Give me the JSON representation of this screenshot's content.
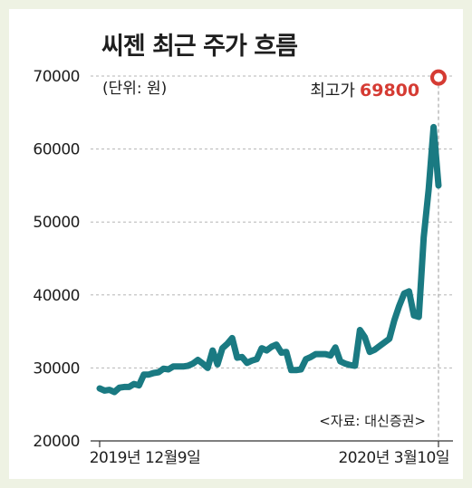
{
  "title": "씨젠 최근 주가 흐름",
  "unit_note": "(단위: 원)",
  "source": "<자료: 대신증권>",
  "colors": {
    "background": "#eef2e3",
    "panel": "#ffffff",
    "line": "#1a7a82",
    "highlight": "#d53b33"
  },
  "chart_data": {
    "type": "line",
    "title": "씨젠 최근 주가 흐름",
    "xlabel": "",
    "ylabel": "",
    "ylim": [
      20000,
      70000
    ],
    "yticks": [
      20000,
      30000,
      40000,
      50000,
      60000,
      70000
    ],
    "ytick_labels": [
      "20000",
      "30000",
      "40000",
      "50000",
      "60000",
      "70000"
    ],
    "xtick_labels": [
      "2019년 12월9일",
      "2020년 3월10일"
    ],
    "grid": "horizontal dashed",
    "annotation": {
      "label": "최고가",
      "value": "69800",
      "y": 69800
    },
    "series": [
      {
        "values": [
          27200,
          26900,
          27000,
          26700,
          27300,
          27400,
          27400,
          27800,
          27600,
          29100,
          29100,
          29300,
          29400,
          29900,
          29800,
          30200,
          30200,
          30200,
          30300,
          30600,
          31100,
          30600,
          30000,
          32400,
          30500,
          32700,
          33300,
          34100,
          31400,
          31500,
          30700,
          31000,
          31200,
          32700,
          32400,
          32900,
          33200,
          32100,
          32200,
          29700,
          29700,
          29800,
          31200,
          31500,
          31900,
          31900,
          31900,
          31700,
          32800,
          30900,
          30600,
          30400,
          30300,
          35200,
          34200,
          32200,
          32500,
          33000,
          33500,
          34000,
          36500,
          38500,
          40200,
          40500,
          37200,
          37000,
          47900,
          54500,
          63000,
          55000
        ]
      }
    ]
  }
}
